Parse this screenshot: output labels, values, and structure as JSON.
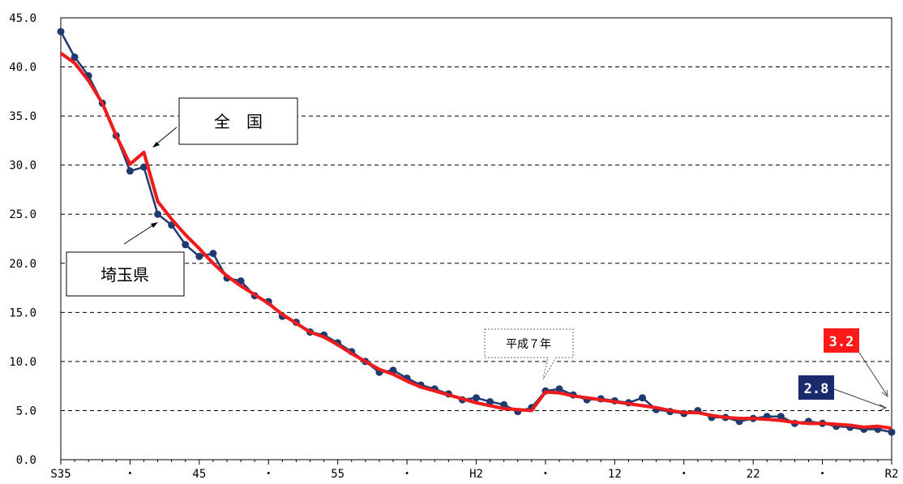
{
  "chart_data": {
    "type": "line",
    "ylim": [
      0,
      45
    ],
    "y_ticks": [
      "0.0",
      "5.0",
      "10.0",
      "15.0",
      "20.0",
      "25.0",
      "30.0",
      "35.0",
      "40.0",
      "45.0"
    ],
    "y_tick_values": [
      0,
      5,
      10,
      15,
      20,
      25,
      30,
      35,
      40,
      45
    ],
    "x_start": 35,
    "x_end": 2,
    "x_tick_labels": [
      {
        "index": 0,
        "label": "S35"
      },
      {
        "index": 5,
        "label": "・"
      },
      {
        "index": 10,
        "label": "45"
      },
      {
        "index": 15,
        "label": "・"
      },
      {
        "index": 20,
        "label": "55"
      },
      {
        "index": 25,
        "label": "・"
      },
      {
        "index": 30,
        "label": "H2"
      },
      {
        "index": 35,
        "label": "・"
      },
      {
        "index": 40,
        "label": "12"
      },
      {
        "index": 45,
        "label": "・"
      },
      {
        "index": 50,
        "label": "22"
      },
      {
        "index": 55,
        "label": "・"
      },
      {
        "index": 60,
        "label": "R2"
      }
    ],
    "grid": true,
    "series": [
      {
        "name": "埼玉県",
        "color": "#1f3a6e",
        "markers": true,
        "values": [
          43.6,
          41.0,
          39.1,
          36.3,
          33.0,
          29.4,
          29.8,
          25.0,
          23.9,
          21.9,
          20.7,
          21.0,
          18.5,
          18.2,
          16.7,
          16.1,
          14.6,
          14.0,
          13.0,
          12.7,
          11.9,
          11.0,
          10.0,
          8.9,
          9.1,
          8.3,
          7.6,
          7.2,
          6.7,
          6.1,
          6.3,
          5.9,
          5.6,
          4.9,
          5.3,
          7.0,
          7.2,
          6.6,
          6.1,
          6.2,
          6.0,
          5.8,
          6.3,
          5.1,
          4.9,
          4.7,
          5.0,
          4.3,
          4.3,
          3.9,
          4.2,
          4.4,
          4.4,
          3.7,
          3.9,
          3.7,
          3.4,
          3.3,
          3.1,
          3.1,
          2.8
        ]
      },
      {
        "name": "全　国",
        "color": "#ee1c1c",
        "markers": false,
        "values": [
          41.4,
          40.4,
          38.6,
          36.3,
          33.0,
          30.1,
          31.3,
          26.3,
          24.5,
          22.9,
          21.5,
          20.0,
          18.7,
          17.7,
          16.8,
          15.9,
          14.8,
          13.9,
          13.0,
          12.5,
          11.7,
          10.8,
          10.0,
          9.2,
          8.7,
          8.0,
          7.4,
          7.0,
          6.6,
          6.2,
          5.8,
          5.5,
          5.2,
          5.1,
          5.0,
          6.9,
          6.8,
          6.5,
          6.3,
          6.1,
          5.9,
          5.7,
          5.5,
          5.3,
          5.0,
          4.8,
          4.8,
          4.5,
          4.3,
          4.2,
          4.2,
          4.1,
          4.0,
          3.8,
          3.7,
          3.7,
          3.6,
          3.5,
          3.3,
          3.4,
          3.2
        ]
      }
    ],
    "annotations": {
      "national_label": "全　国",
      "saitama_label": "埼玉県",
      "heisei7_label": "平成７年",
      "national_end_value": "3.2",
      "saitama_end_value": "2.8",
      "national_end_color": "#ff1a1a",
      "saitama_end_color": "#1a2a6c"
    }
  }
}
